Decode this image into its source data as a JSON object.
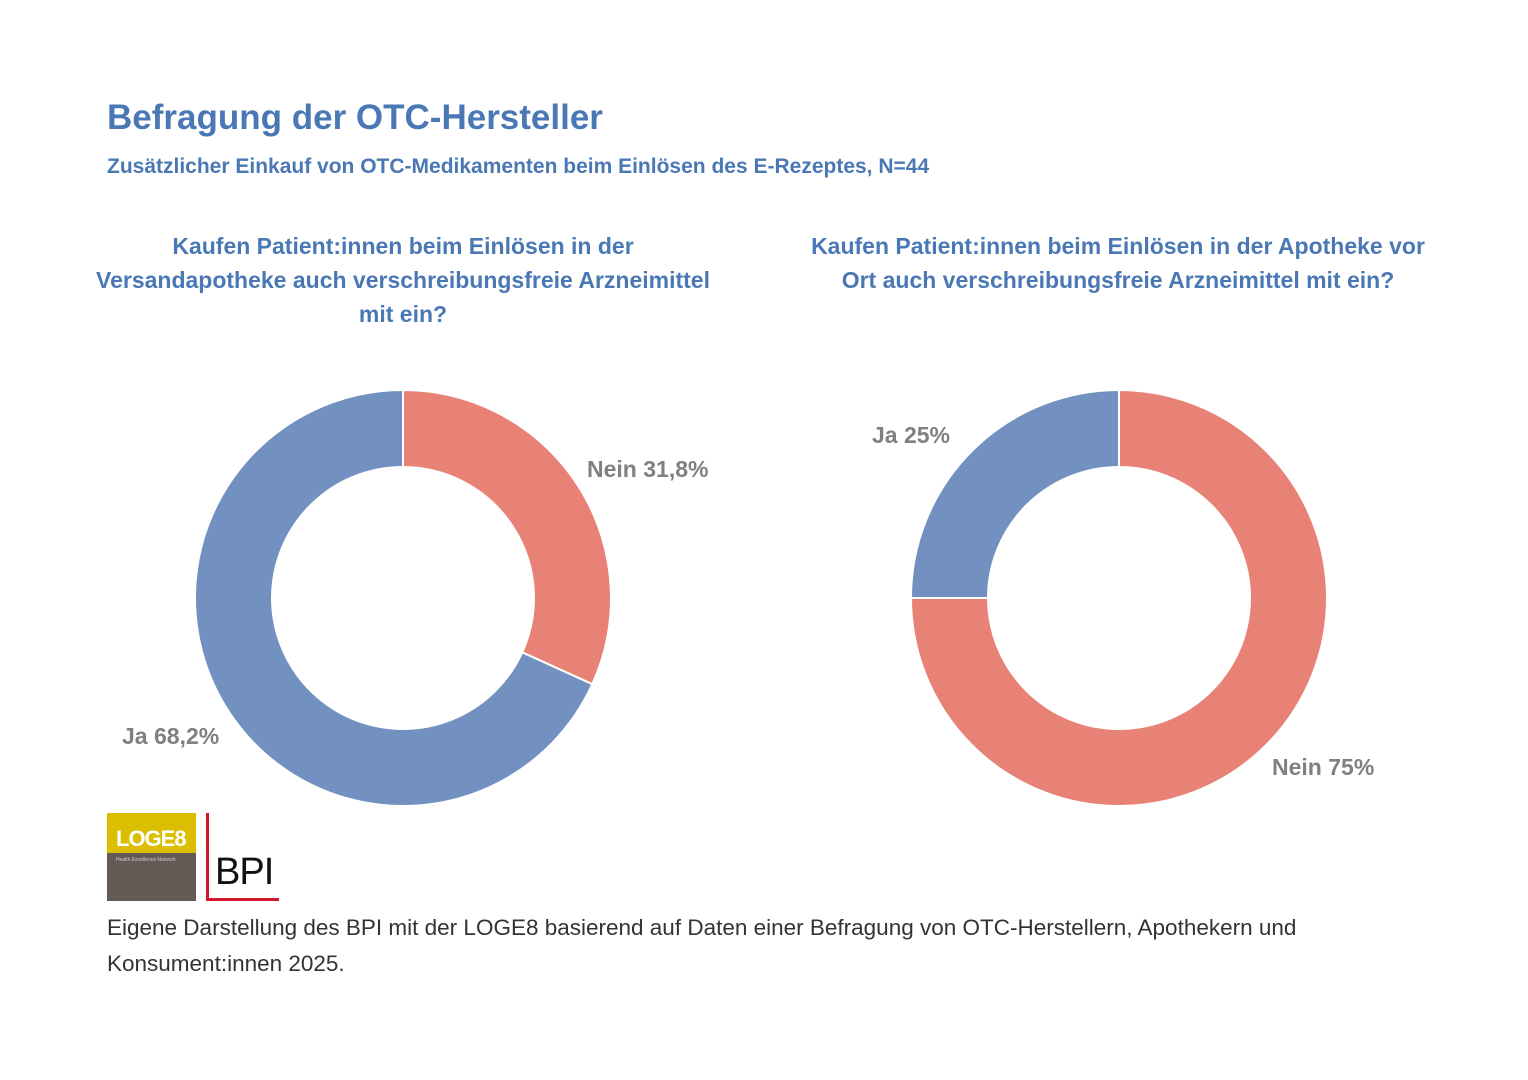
{
  "header": {
    "title": "Befragung der OTC-Hersteller",
    "subtitle": "Zusätzlicher Einkauf von OTC-Medikamenten beim Einlösen des E-Rezeptes, N=44"
  },
  "colors": {
    "ja": "#7291c0",
    "nein": "#e88276",
    "title": "#4a78b5"
  },
  "chart_data": [
    {
      "type": "pie",
      "donut": true,
      "title": "Kaufen Patient:innen beim Einlösen in der Versandapotheke auch verschreibungsfreie Arzneimittel mit ein?",
      "slices": [
        {
          "label": "Nein",
          "value": 31.8,
          "display": "Nein 31,8%"
        },
        {
          "label": "Ja",
          "value": 68.2,
          "display": "Ja 68,2%"
        }
      ]
    },
    {
      "type": "pie",
      "donut": true,
      "title": "Kaufen Patient:innen beim Einlösen in der Apotheke vor Ort auch verschreibungsfreie Arzneimittel mit ein?",
      "slices": [
        {
          "label": "Nein",
          "value": 75,
          "display": "Nein 75%"
        },
        {
          "label": "Ja",
          "value": 25,
          "display": "Ja 25%"
        }
      ]
    }
  ],
  "logos": {
    "loge8": "LOGE8",
    "loge8_tagline": "Health.Excellence.Network",
    "bpi": "BPI"
  },
  "footer": "Eigene Darstellung des BPI mit der LOGE8 basierend auf Daten einer Befragung von OTC-Herstellern, Apothekern und Konsument:innen 2025."
}
